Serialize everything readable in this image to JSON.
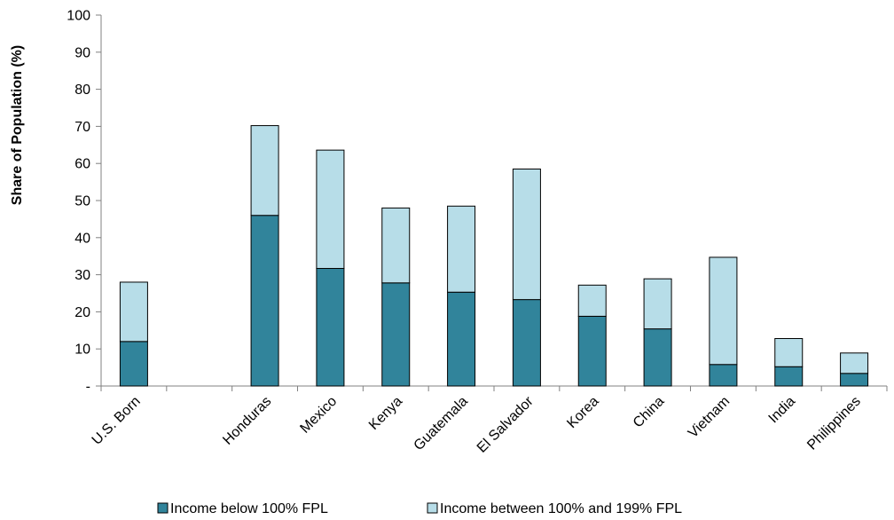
{
  "chart_data": {
    "type": "bar",
    "stacked": true,
    "title": "",
    "xlabel": "",
    "ylabel": "Share of Population  (%)",
    "ylim": [
      0,
      100
    ],
    "yticks": [
      0,
      10,
      20,
      30,
      40,
      50,
      60,
      70,
      80,
      90,
      100
    ],
    "ytick_labels": [
      "-",
      "10",
      "20",
      "30",
      "40",
      "50",
      "60",
      "70",
      "80",
      "90",
      "100"
    ],
    "grid": false,
    "legend_position": "bottom",
    "categories": [
      "U.S. Born",
      "",
      "Honduras",
      "Mexico",
      "Kenya",
      "Guatemala",
      "El Salvador",
      "Korea",
      "China",
      "Vietnam",
      "India",
      "Philippines"
    ],
    "series": [
      {
        "name": "Income below 100% FPL",
        "color": "#31849B",
        "values": [
          12,
          null,
          46,
          31.7,
          27.8,
          25.3,
          23.3,
          18.8,
          15.4,
          5.8,
          5.2,
          3.4
        ]
      },
      {
        "name": "Income between 100% and 199% FPL",
        "color": "#B7DDE8",
        "values": [
          16,
          null,
          24.2,
          31.9,
          20.2,
          23.2,
          35.2,
          8.4,
          13.5,
          28.9,
          7.6,
          5.5
        ]
      }
    ]
  }
}
